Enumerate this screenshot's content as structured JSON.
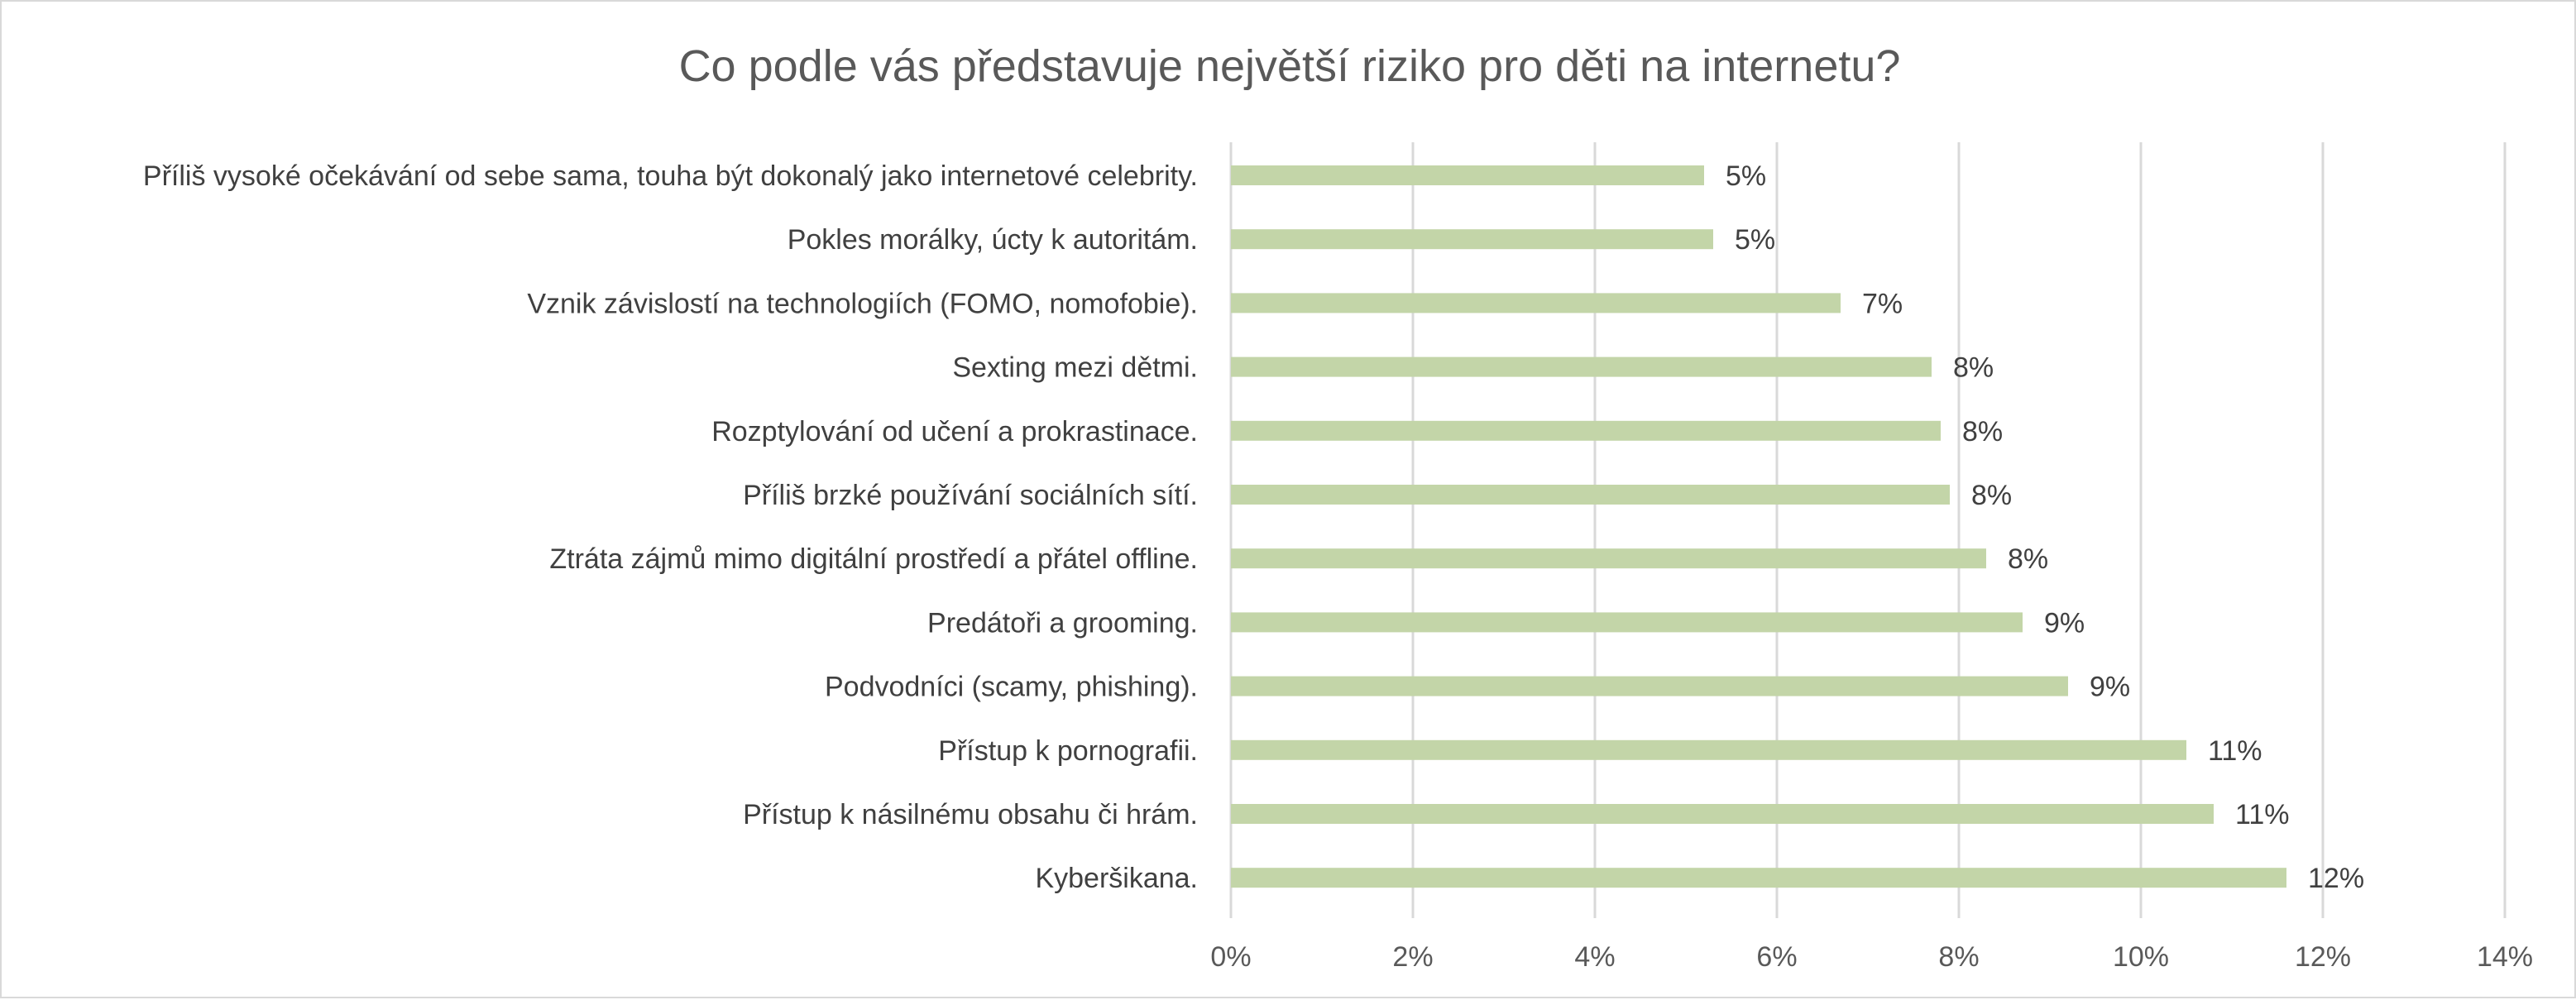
{
  "chart_data": {
    "type": "bar",
    "orientation": "horizontal",
    "title": "Co podle vás představuje největší riziko pro děti na internetu?",
    "categories": [
      "Příliš vysoké očekávání od sebe sama, touha být dokonalý jako internetové celebrity.",
      "Pokles morálky, úcty k autoritám.",
      "Vznik závislostí na technologiích (FOMO, nomofobie).",
      "Sexting mezi dětmi.",
      "Rozptylování od učení a prokrastinace.",
      "Příliš brzké používání sociálních sítí.",
      "Ztráta zájmů mimo digitální prostředí a přátel offline.",
      "Predátoři a grooming.",
      "Podvodníci (scamy, phishing).",
      "Přístup k pornografii.",
      "Přístup k násilnému obsahu či hrám.",
      "Kyberšikana."
    ],
    "values": [
      5.2,
      5.3,
      6.7,
      7.7,
      7.8,
      7.9,
      8.3,
      8.7,
      9.2,
      10.5,
      10.8,
      11.6
    ],
    "value_labels": [
      "5%",
      "5%",
      "7%",
      "8%",
      "8%",
      "8%",
      "8%",
      "9%",
      "9%",
      "11%",
      "11%",
      "12%"
    ],
    "xlim": [
      0,
      14
    ],
    "xticks": [
      0,
      2,
      4,
      6,
      8,
      10,
      12,
      14
    ],
    "xtick_labels": [
      "0%",
      "2%",
      "4%",
      "6%",
      "8%",
      "10%",
      "12%",
      "14%"
    ],
    "grid": true,
    "legend": "none",
    "bar_color": "#c3d5a8"
  }
}
